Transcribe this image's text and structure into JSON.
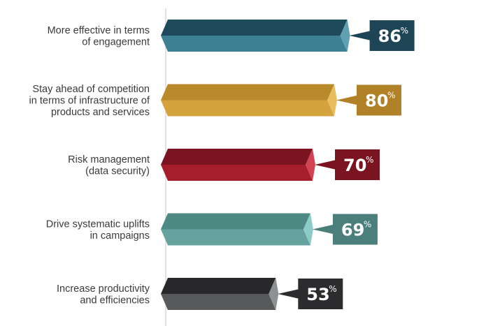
{
  "chart_data": {
    "type": "bar",
    "orientation": "horizontal",
    "categories": [
      [
        "More effective in terms",
        "of engagement"
      ],
      [
        "Stay ahead of competition",
        "in terms of infrastructure of",
        "products and services"
      ],
      [
        "Risk management",
        "(data security)"
      ],
      [
        "Drive systematic uplifts",
        "in campaigns"
      ],
      [
        "Increase productivity",
        "and efficiencies"
      ]
    ],
    "values": [
      86,
      80,
      70,
      69,
      53
    ],
    "value_suffix": "%",
    "title": "",
    "xlabel": "",
    "ylabel": "",
    "xlim": [
      0,
      100
    ],
    "grid": false,
    "legend": "none",
    "colors": [
      {
        "top": "#1f4a5b",
        "bottom": "#3d7f93",
        "tip": "#5fa0b3",
        "label_bg": "#1d4555"
      },
      {
        "top": "#b88a2b",
        "bottom": "#d4a33e",
        "tip": "#e8bd5c",
        "label_bg": "#b08127"
      },
      {
        "top": "#7a1420",
        "bottom": "#a61e2c",
        "tip": "#d14352",
        "label_bg": "#7a1420"
      },
      {
        "top": "#4e8984",
        "bottom": "#66a39f",
        "tip": "#8ccbc6",
        "label_bg": "#4b7f7c"
      },
      {
        "top": "#28282a",
        "bottom": "#58595b",
        "tip": "#8f9092",
        "label_bg": "#2c2c2e"
      }
    ]
  }
}
